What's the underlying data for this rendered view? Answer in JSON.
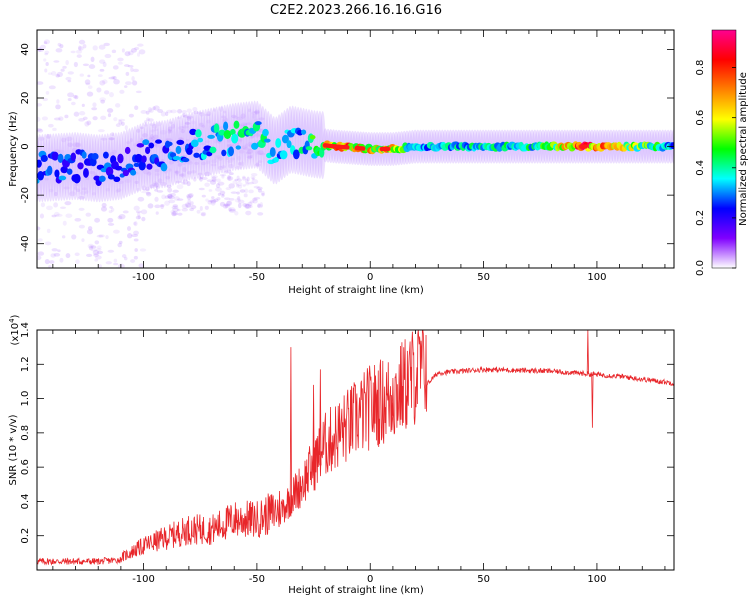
{
  "title": "C2E2.2023.266.16.16.G16",
  "chart_data": [
    {
      "type": "heatmap",
      "name": "spectrogram",
      "xlabel": "Height of straight line (km)",
      "ylabel": "Frequency (Hz)",
      "xlim": [
        -147,
        134
      ],
      "ylim": [
        -50,
        48
      ],
      "xticks": [
        -100,
        -50,
        0,
        50,
        100
      ],
      "yticks": [
        -40,
        -20,
        0,
        20,
        40
      ],
      "colorbar": {
        "label": "Normalized spectral amplitude",
        "range": [
          0.0,
          0.95
        ],
        "ticks": [
          0.0,
          0.2,
          0.4,
          0.6,
          0.8
        ],
        "colormap": [
          "#ffffff",
          "#8000ff",
          "#0000ff",
          "#00ffff",
          "#00ff00",
          "#ffff00",
          "#ff8000",
          "#ff0000",
          "#ff0090"
        ]
      },
      "ridge": [
        {
          "x": -147,
          "y": -9,
          "amp": 0.35
        },
        {
          "x": -130,
          "y": -8,
          "amp": 0.32
        },
        {
          "x": -120,
          "y": -9,
          "amp": 0.3
        },
        {
          "x": -110,
          "y": -8,
          "amp": 0.28
        },
        {
          "x": -100,
          "y": -4,
          "amp": 0.3
        },
        {
          "x": -90,
          "y": -3,
          "amp": 0.32
        },
        {
          "x": -80,
          "y": 0,
          "amp": 0.36
        },
        {
          "x": -70,
          "y": 2,
          "amp": 0.42
        },
        {
          "x": -60,
          "y": 4,
          "amp": 0.45
        },
        {
          "x": -50,
          "y": 5,
          "amp": 0.48
        },
        {
          "x": -42,
          "y": -2,
          "amp": 0.38
        },
        {
          "x": -35,
          "y": 3,
          "amp": 0.35
        },
        {
          "x": -25,
          "y": 1,
          "amp": 0.5
        },
        {
          "x": -15,
          "y": 0,
          "amp": 0.85
        },
        {
          "x": 0,
          "y": -1,
          "amp": 0.75
        },
        {
          "x": 10,
          "y": -1,
          "amp": 0.7
        },
        {
          "x": 20,
          "y": 0,
          "amp": 0.42
        },
        {
          "x": 50,
          "y": 0,
          "amp": 0.44
        },
        {
          "x": 75,
          "y": 0,
          "amp": 0.48
        },
        {
          "x": 94,
          "y": 0,
          "amp": 0.9
        },
        {
          "x": 134,
          "y": 0,
          "amp": 0.4
        }
      ]
    },
    {
      "type": "line",
      "name": "snr",
      "xlabel": "Height of straight line (km)",
      "ylabel": "SNR (10 * v/v)",
      "y_multiplier": "(x10^4)",
      "xlim": [
        -147,
        134
      ],
      "ylim": [
        0.0,
        1.4
      ],
      "xticks": [
        -100,
        -50,
        0,
        50,
        100
      ],
      "yticks": [
        0.2,
        0.4,
        0.6,
        0.8,
        1.0,
        1.2,
        1.4
      ],
      "color": "#e8262a",
      "envelope": [
        {
          "x": -147,
          "y": 0.05
        },
        {
          "x": -120,
          "y": 0.05
        },
        {
          "x": -110,
          "y": 0.06
        },
        {
          "x": -100,
          "y": 0.12
        },
        {
          "x": -80,
          "y": 0.2
        },
        {
          "x": -70,
          "y": 0.2
        },
        {
          "x": -60,
          "y": 0.25
        },
        {
          "x": -50,
          "y": 0.25
        },
        {
          "x": -40,
          "y": 0.3
        },
        {
          "x": -30,
          "y": 0.45
        },
        {
          "x": -20,
          "y": 0.65
        },
        {
          "x": -10,
          "y": 0.75
        },
        {
          "x": 0,
          "y": 0.85
        },
        {
          "x": 10,
          "y": 0.9
        },
        {
          "x": 20,
          "y": 1.02
        },
        {
          "x": 30,
          "y": 1.15
        },
        {
          "x": 50,
          "y": 1.17
        },
        {
          "x": 80,
          "y": 1.16
        },
        {
          "x": 90,
          "y": 1.15
        },
        {
          "x": 110,
          "y": 1.13
        },
        {
          "x": 134,
          "y": 1.09
        }
      ],
      "spikes": [
        {
          "x": -35,
          "y": 1.3
        },
        {
          "x": -22,
          "y": 1.17
        },
        {
          "x": -25,
          "y": 1.08
        },
        {
          "x": 10,
          "y": 1.12
        },
        {
          "x": 96,
          "y": 1.4
        },
        {
          "x": 98,
          "y": 0.83
        }
      ]
    }
  ]
}
